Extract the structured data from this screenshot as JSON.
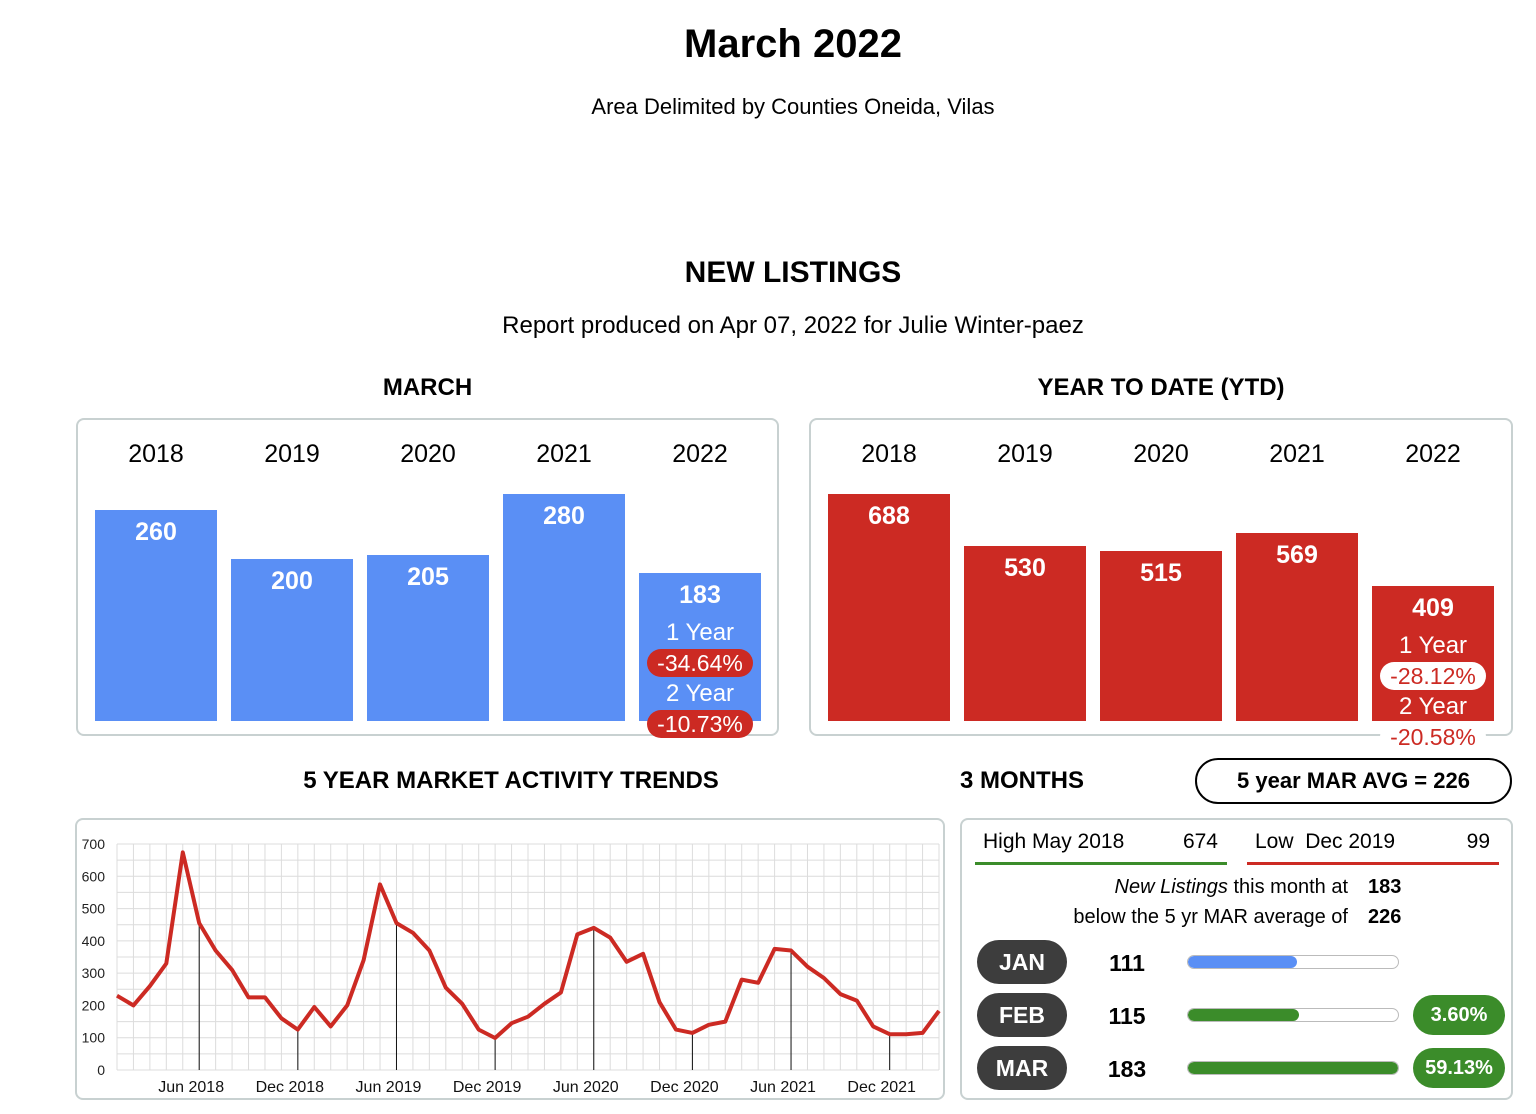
{
  "header": {
    "title": "March 2022",
    "subtitle": "Area Delimited by Counties Oneida, Vilas",
    "section": "NEW LISTINGS",
    "report": "Report produced on Apr 07, 2022 for Julie Winter-paez"
  },
  "march": {
    "heading": "MARCH",
    "years": [
      "2018",
      "2019",
      "2020",
      "2021",
      "2022"
    ],
    "values": [
      260,
      200,
      205,
      280,
      183
    ],
    "value_labels": [
      "260",
      "200",
      "205",
      "280",
      "183"
    ],
    "one_year_label": "1 Year",
    "one_year_change": "-34.64%",
    "two_year_label": "2 Year",
    "two_year_change": "-10.73%",
    "color": "#5a8ff5"
  },
  "ytd": {
    "heading": "YEAR TO DATE (YTD)",
    "years": [
      "2018",
      "2019",
      "2020",
      "2021",
      "2022"
    ],
    "values": [
      688,
      530,
      515,
      569,
      409
    ],
    "value_labels": [
      "688",
      "530",
      "515",
      "569",
      "409"
    ],
    "one_year_label": "1 Year",
    "one_year_change": "-28.12%",
    "two_year_label": "2 Year",
    "two_year_change": "-20.58%",
    "color": "#cc2a23"
  },
  "trends": {
    "heading": "5 YEAR MARKET ACTIVITY TRENDS"
  },
  "chart_data": {
    "type": "line",
    "title": "5 YEAR MARKET ACTIVITY TRENDS",
    "x_start": "Mar 2018",
    "x": [
      "Mar 2018",
      "Apr 2018",
      "May 2018",
      "Jun 2018",
      "Jul 2018",
      "Aug 2018",
      "Sep 2018",
      "Oct 2018",
      "Nov 2018",
      "Dec 2018",
      "Jan 2019",
      "Feb 2019",
      "Mar 2019",
      "Apr 2019",
      "May 2019",
      "Jun 2019",
      "Jul 2019",
      "Aug 2019",
      "Sep 2019",
      "Oct 2019",
      "Nov 2019",
      "Dec 2019",
      "Jan 2020",
      "Feb 2020",
      "Mar 2020",
      "Apr 2020",
      "May 2020",
      "Jun 2020",
      "Jul 2020",
      "Aug 2020",
      "Sep 2020",
      "Oct 2020",
      "Nov 2020",
      "Dec 2020",
      "Jan 2021",
      "Feb 2021",
      "Mar 2021",
      "Apr 2021",
      "May 2021",
      "Jun 2021",
      "Jul 2021",
      "Aug 2021",
      "Sep 2021",
      "Oct 2021",
      "Nov 2021",
      "Dec 2021",
      "Jan 2022",
      "Feb 2022",
      "Mar 2022"
    ],
    "series": [
      {
        "values": [
          260,
          330,
          674,
          455,
          370,
          310,
          225,
          225,
          160,
          125,
          195,
          135,
          200,
          340,
          575,
          455,
          425,
          370,
          255,
          205,
          125,
          99,
          145,
          165,
          205,
          240,
          420,
          440,
          410,
          335,
          360,
          210,
          125,
          115,
          140,
          150,
          280,
          270,
          375,
          370,
          320,
          285,
          235,
          215,
          135,
          111,
          111,
          115,
          183
        ],
        "color": "#cc2a23"
      }
    ],
    "prepend_values": [
      230,
      200
    ],
    "ylim": [
      0,
      700
    ],
    "yticks": [
      "0",
      "100",
      "200",
      "300",
      "400",
      "500",
      "600",
      "700"
    ],
    "xtick_labels": [
      "Jun 2018",
      "Dec 2018",
      "Jun 2019",
      "Dec 2019",
      "Jun 2020",
      "Dec 2020",
      "Jun 2021",
      "Dec 2021"
    ],
    "grid": true
  },
  "three_months": {
    "heading": "3 MONTHS",
    "avg_badge": "5 year MAR AVG = 226",
    "high_label": "High May 2018",
    "high_value": "674",
    "low_label": "Low  Dec 2019",
    "low_value": "99",
    "high_color": "#3b8c2a",
    "low_color": "#cc2a23",
    "summary_italic": "New Listings",
    "summary_line1_rest": " this month at",
    "summary_value1": "183",
    "summary_line2": "below the 5 yr MAR average of",
    "summary_value2": "226",
    "months": [
      {
        "name": "JAN",
        "value": "111",
        "fraction": 0.52,
        "color": "#5a8ff5",
        "pct": ""
      },
      {
        "name": "FEB",
        "value": "115",
        "fraction": 0.53,
        "color": "#3b8c2a",
        "pct": "3.60%"
      },
      {
        "name": "MAR",
        "value": "183",
        "fraction": 1.0,
        "color": "#3b8c2a",
        "pct": "59.13%"
      }
    ]
  }
}
